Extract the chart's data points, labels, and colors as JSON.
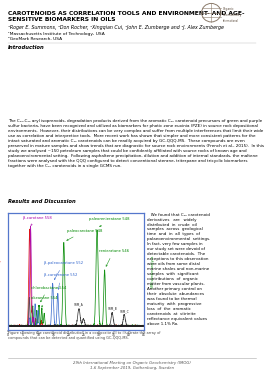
{
  "title": "CAROTENOIDS AS CORRELATION TOOLS AND ENVIRONMENT- AND AGE-\nSENSITIVE BIOMARKERS IN OILS",
  "authors": "¹Roger E. Summons, ²Don Rocher, ²Xingqian Cui, ²John E. Zumberge and ²J. Alex Zumberge",
  "affiliations": [
    "¹Massachusetts Institute of Technology, USA",
    "²GeoMark Research, USA"
  ],
  "intro_title": "Introduction",
  "intro_text": "The C₁₅-C₂₂ aryl isoprenoids, degradation products derived from the aromatic C₄₀ carotenoid precursors of green and purple sulfur bacteria, have been recognized and utilized as biomarkers for photic zone euxinia (PZE) in source rock depositional environments.  However, their distributions can be very complex and suffer from multiple interferences that limit their wide use as correlation and interpretive tools.  More recent work has shown that simpler and more consistent patterns for the intact saturated and aromatic C₄₀ carotenoids can be readily acquired by GC-QQQ-MS.  These compounds are even preserved in mature samples and show trends that are diagnostic for source rock environments (French et al., 2015).  In this study we analysed ~150 petroleum samples that could be confidently affiliated with source rocks of known age and palaeoenvironmental setting.  Following asphaltene precipitation, dilution and addition of internal standards, the maltene fractions were analysed with the QQQ configured to detect conventional sterane, triterpane and tricyclic biomarkers together with the C₄₀ carotenoids in a single GCMS run.",
  "results_title": "Results and Discussion",
  "results_text": "   We found that C₄₀ carotenoid\nderivatives   are   widely\ndistributed  in  crude  oil\nsamples  across  geological\ntime  and  in  all  types  of\npalaeoenvironmental  settings.\nIn fact, very few samples in\nour study set were devoid of\ndetectable carotenoids.  The\nexceptions to this observation\nwere oils from some distal\nmarine shales and non-marine\nsamples  with  significant\ncontributions  of  organic\nmatter from vascular plants.\nAnother primary control on\ntheir  absolute  abundances\nwas found to be thermal\nmaturity  with  progressive\nloss  of  the  aromatic\ncarotenoids  at  vitrinite\nreflectance equivalent values\nabove 1.1% Ro.",
  "figure_caption": "Figure showing the carotenoid distribution in a composite oil to illustrate the array of\ncompounds that can be detected and quantified using GC-QQQ-MS.",
  "footer": "29th International Meeting on Organic Geochemistry (IMOG)\n1-6 September 2019, Gothenburg, Sweden",
  "bg_color": "#ffffff",
  "text_color": "#000000",
  "title_color": "#000000",
  "intro_title_color": "#000000",
  "results_title_color": "#000000",
  "chrom_border_color": "#5577cc",
  "red_color": "#dd0000",
  "green_color": "#008800",
  "blue_color": "#3366cc",
  "purple_color": "#aa00aa",
  "dark_color": "#222222"
}
